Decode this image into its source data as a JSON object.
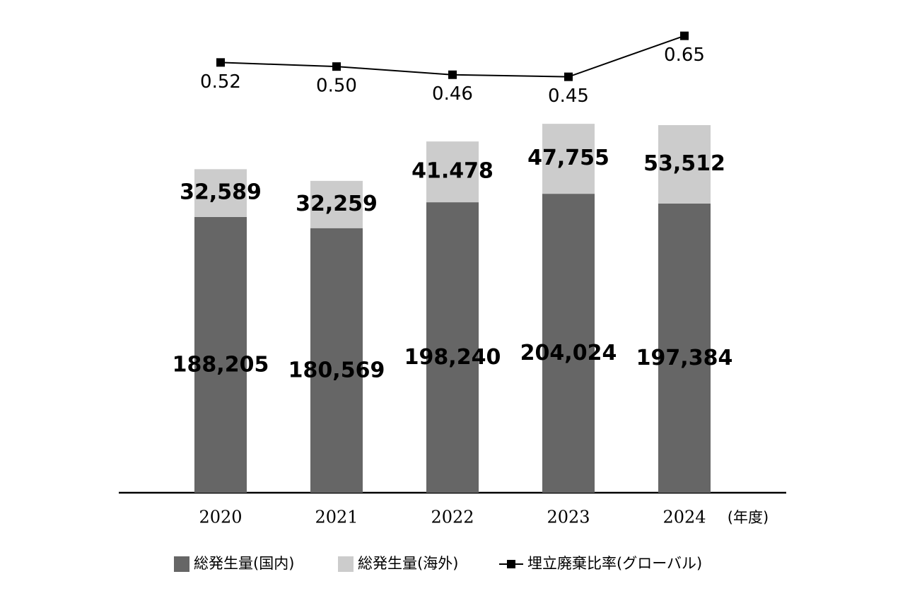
{
  "chart_data": {
    "type": "bar-line",
    "categories": [
      "2020",
      "2021",
      "2022",
      "2023",
      "2024"
    ],
    "x_unit": "(年度)",
    "stacked": true,
    "series": [
      {
        "name": "総発生量(国内)",
        "type": "bar",
        "color": "#666666",
        "values": [
          188205,
          180569,
          198240,
          204024,
          197384
        ],
        "value_labels": [
          "188,205",
          "180,569",
          "198,240",
          "204,024",
          "197,384"
        ]
      },
      {
        "name": "総発生量(海外)",
        "type": "bar",
        "color": "#cccccc",
        "values": [
          32589,
          32259,
          41478,
          47755,
          53512
        ],
        "value_labels": [
          "32,589",
          "32,259",
          "41.478",
          "47,755",
          "53,512"
        ]
      },
      {
        "name": "埋立廃棄比率(グローバル)",
        "type": "line",
        "axis": "y2",
        "color": "#000000",
        "values": [
          0.52,
          0.5,
          0.46,
          0.45,
          0.65
        ],
        "value_labels": [
          "0.52",
          "0.50",
          "0.46",
          "0.45",
          "0.65"
        ]
      }
    ],
    "ylim": [
      0,
      330000
    ],
    "y2lim": [
      -1.58,
      0.78
    ]
  }
}
